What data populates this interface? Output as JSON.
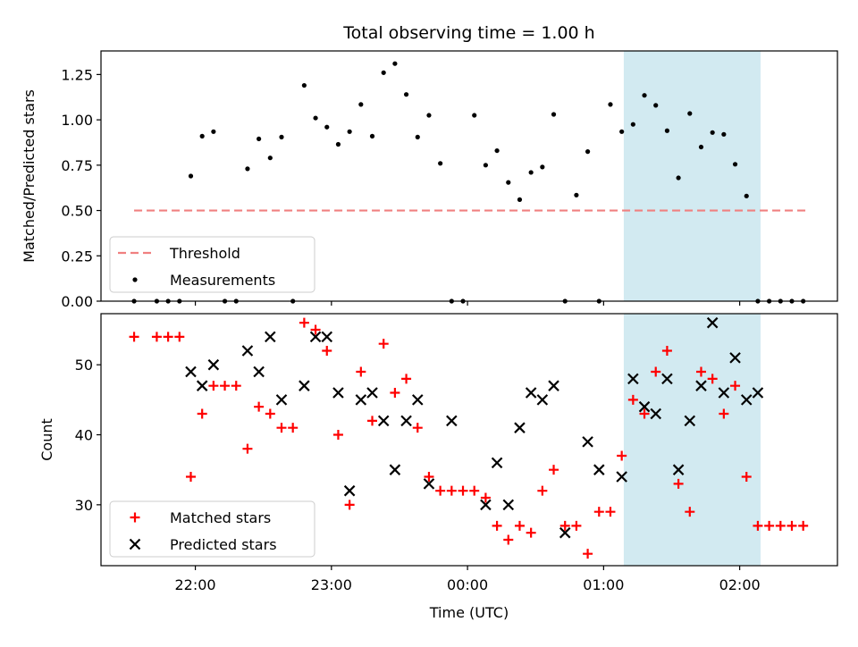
{
  "chart_data": {
    "title": "Total observing time = 1.00 h",
    "xlabel": "Time (UTC)",
    "x_ticks": [
      "22:00",
      "23:00",
      "00:00",
      "01:00",
      "02:00"
    ],
    "x_tick_minutes": [
      0,
      60,
      120,
      180,
      240
    ],
    "x_range_minutes": [
      -41.6,
      283.1
    ],
    "highlight_minutes": [
      188.9,
      249.2
    ],
    "highlight_color": "#add8e6",
    "panels": [
      {
        "type": "scatter",
        "ylabel": "Matched/Predicted stars",
        "ylim": [
          0,
          1.38
        ],
        "y_ticks": [
          "0.00",
          "0.25",
          "0.50",
          "0.75",
          "1.00",
          "1.25"
        ],
        "y_tick_values": [
          0,
          0.25,
          0.5,
          0.75,
          1.0,
          1.25
        ],
        "legend": [
          "Threshold",
          "Measurements"
        ],
        "threshold": {
          "name": "Threshold",
          "value": 0.5,
          "x_range": [
            -27,
            270
          ],
          "color": "#f08080"
        },
        "series": [
          {
            "name": "Measurements",
            "color": "#000000",
            "points": [
              [
                -27,
                0
              ],
              [
                -17,
                0
              ],
              [
                -12,
                0
              ],
              [
                -7,
                0
              ],
              [
                -2,
                0.69
              ],
              [
                3,
                0.91
              ],
              [
                8,
                0.935
              ],
              [
                13,
                0
              ],
              [
                18,
                0
              ],
              [
                23,
                0.73
              ],
              [
                28,
                0.895
              ],
              [
                33,
                0.79
              ],
              [
                38,
                0.905
              ],
              [
                43,
                0
              ],
              [
                48,
                1.19
              ],
              [
                53,
                1.01
              ],
              [
                58,
                0.96
              ],
              [
                63,
                0.865
              ],
              [
                68,
                0.935
              ],
              [
                73,
                1.085
              ],
              [
                78,
                0.91
              ],
              [
                83,
                1.26
              ],
              [
                88,
                1.31
              ],
              [
                93,
                1.14
              ],
              [
                98,
                0.905
              ],
              [
                103,
                1.025
              ],
              [
                108,
                0.76
              ],
              [
                113,
                0
              ],
              [
                118,
                0
              ],
              [
                123,
                1.025
              ],
              [
                128,
                0.75
              ],
              [
                133,
                0.83
              ],
              [
                138,
                0.655
              ],
              [
                143,
                0.56
              ],
              [
                148,
                0.71
              ],
              [
                153,
                0.74
              ],
              [
                158,
                1.03
              ],
              [
                163,
                0
              ],
              [
                168,
                0.585
              ],
              [
                173,
                0.825
              ],
              [
                178,
                0
              ],
              [
                183,
                1.085
              ],
              [
                188,
                0.935
              ],
              [
                193,
                0.975
              ],
              [
                198,
                1.135
              ],
              [
                203,
                1.08
              ],
              [
                208,
                0.94
              ],
              [
                213,
                0.68
              ],
              [
                218,
                1.035
              ],
              [
                223,
                0.85
              ],
              [
                228,
                0.93
              ],
              [
                233,
                0.92
              ],
              [
                238,
                0.755
              ],
              [
                243,
                0.58
              ],
              [
                248,
                0
              ],
              [
                253,
                0
              ],
              [
                258,
                0
              ],
              [
                263,
                0
              ],
              [
                268,
                0
              ]
            ]
          }
        ]
      },
      {
        "type": "scatter",
        "ylabel": "Count",
        "ylim": [
          21.3,
          57.3
        ],
        "y_ticks": [
          "30",
          "40",
          "50"
        ],
        "y_tick_values": [
          30,
          40,
          50
        ],
        "legend": [
          "Matched stars",
          "Predicted stars"
        ],
        "series": [
          {
            "name": "Matched stars",
            "marker": "plus",
            "color": "#ff0000",
            "points": [
              [
                -27,
                54
              ],
              [
                -17,
                54
              ],
              [
                -12,
                54
              ],
              [
                -7,
                54
              ],
              [
                -2,
                34
              ],
              [
                3,
                43
              ],
              [
                8,
                47
              ],
              [
                13,
                47
              ],
              [
                18,
                47
              ],
              [
                23,
                38
              ],
              [
                28,
                44
              ],
              [
                33,
                43
              ],
              [
                38,
                41
              ],
              [
                43,
                41
              ],
              [
                48,
                56
              ],
              [
                53,
                55
              ],
              [
                58,
                52
              ],
              [
                63,
                40
              ],
              [
                68,
                30
              ],
              [
                73,
                49
              ],
              [
                78,
                42
              ],
              [
                83,
                53
              ],
              [
                88,
                46
              ],
              [
                93,
                48
              ],
              [
                98,
                41
              ],
              [
                103,
                34
              ],
              [
                108,
                32
              ],
              [
                113,
                32
              ],
              [
                118,
                32
              ],
              [
                123,
                32
              ],
              [
                128,
                31
              ],
              [
                133,
                27
              ],
              [
                138,
                25
              ],
              [
                143,
                27
              ],
              [
                148,
                26
              ],
              [
                153,
                32
              ],
              [
                158,
                35
              ],
              [
                163,
                27
              ],
              [
                168,
                27
              ],
              [
                173,
                23
              ],
              [
                178,
                29
              ],
              [
                183,
                29
              ],
              [
                188,
                37
              ],
              [
                193,
                45
              ],
              [
                198,
                43
              ],
              [
                203,
                49
              ],
              [
                208,
                52
              ],
              [
                213,
                33
              ],
              [
                218,
                29
              ],
              [
                223,
                49
              ],
              [
                228,
                48
              ],
              [
                233,
                43
              ],
              [
                238,
                47
              ],
              [
                243,
                34
              ],
              [
                248,
                27
              ],
              [
                253,
                27
              ],
              [
                258,
                27
              ],
              [
                263,
                27
              ],
              [
                268,
                27
              ]
            ]
          },
          {
            "name": "Predicted stars",
            "marker": "x",
            "color": "#000000",
            "points": [
              [
                -2,
                49
              ],
              [
                3,
                47
              ],
              [
                8,
                50
              ],
              [
                23,
                52
              ],
              [
                28,
                49
              ],
              [
                33,
                54
              ],
              [
                38,
                45
              ],
              [
                48,
                47
              ],
              [
                53,
                54
              ],
              [
                58,
                54
              ],
              [
                63,
                46
              ],
              [
                68,
                32
              ],
              [
                73,
                45
              ],
              [
                78,
                46
              ],
              [
                83,
                42
              ],
              [
                88,
                35
              ],
              [
                93,
                42
              ],
              [
                98,
                45
              ],
              [
                103,
                33
              ],
              [
                113,
                42
              ],
              [
                128,
                30
              ],
              [
                133,
                36
              ],
              [
                138,
                30
              ],
              [
                143,
                41
              ],
              [
                148,
                46
              ],
              [
                153,
                45
              ],
              [
                158,
                47
              ],
              [
                163,
                26
              ],
              [
                173,
                39
              ],
              [
                178,
                35
              ],
              [
                188,
                34
              ],
              [
                193,
                48
              ],
              [
                198,
                44
              ],
              [
                203,
                43
              ],
              [
                208,
                48
              ],
              [
                213,
                35
              ],
              [
                218,
                42
              ],
              [
                223,
                47
              ],
              [
                228,
                56
              ],
              [
                233,
                46
              ],
              [
                238,
                51
              ],
              [
                243,
                45
              ],
              [
                248,
                46
              ]
            ]
          }
        ]
      }
    ]
  }
}
